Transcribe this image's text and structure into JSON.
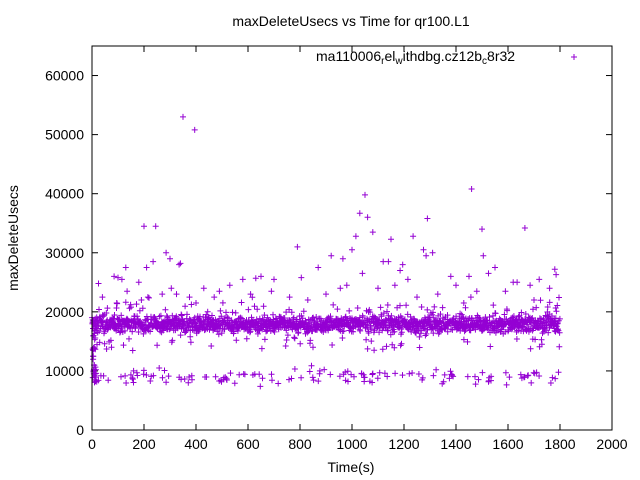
{
  "chart_data": {
    "type": "scatter",
    "title": "maxDeleteUsecs vs Time for qr100.L1",
    "xlabel": "Time(s)",
    "ylabel": "maxDeleteUsecs",
    "xlim": [
      0,
      2000
    ],
    "ylim": [
      0,
      65000
    ],
    "xticks": [
      0,
      200,
      400,
      600,
      800,
      1000,
      1200,
      1400,
      1600,
      1800,
      2000
    ],
    "yticks": [
      0,
      10000,
      20000,
      30000,
      40000,
      50000,
      60000
    ],
    "grid": false,
    "legend_position": "top-right",
    "marker": "+",
    "series": [
      {
        "name": "ma110006_rel_withdbg.cz12b_c8r32",
        "legend_parts": {
          "base": "ma110006",
          "sub1": "r",
          "mid1": "el",
          "sub2": "w",
          "mid2": "ithdbg.cz12b",
          "sub3": "c",
          "end": "8r32"
        },
        "color": "#9400d3",
        "cluster_count": 1800,
        "points": [
          [
            5,
            12500
          ],
          [
            8,
            11000
          ],
          [
            12,
            9500
          ],
          [
            15,
            10200
          ],
          [
            18,
            8200
          ],
          [
            22,
            16500
          ],
          [
            25,
            24800
          ],
          [
            40,
            22500
          ],
          [
            55,
            19800
          ],
          [
            60,
            17000
          ],
          [
            75,
            14000
          ],
          [
            85,
            26000
          ],
          [
            95,
            21500
          ],
          [
            100,
            25800
          ],
          [
            115,
            25500
          ],
          [
            130,
            27500
          ],
          [
            135,
            23500
          ],
          [
            150,
            20800
          ],
          [
            160,
            10000
          ],
          [
            180,
            25000
          ],
          [
            190,
            22000
          ],
          [
            200,
            34500
          ],
          [
            210,
            27500
          ],
          [
            215,
            22500
          ],
          [
            235,
            28500
          ],
          [
            245,
            34500
          ],
          [
            270,
            23000
          ],
          [
            285,
            30000
          ],
          [
            300,
            29000
          ],
          [
            305,
            24000
          ],
          [
            325,
            23000
          ],
          [
            335,
            28000
          ],
          [
            340,
            28200
          ],
          [
            350,
            53000
          ],
          [
            375,
            22500
          ],
          [
            395,
            50800
          ],
          [
            400,
            21500
          ],
          [
            430,
            24000
          ],
          [
            445,
            20000
          ],
          [
            470,
            22500
          ],
          [
            490,
            23500
          ],
          [
            530,
            24500
          ],
          [
            555,
            15200
          ],
          [
            580,
            25500
          ],
          [
            610,
            23000
          ],
          [
            630,
            25700
          ],
          [
            650,
            26000
          ],
          [
            690,
            23500
          ],
          [
            700,
            25500
          ],
          [
            760,
            22500
          ],
          [
            780,
            15500
          ],
          [
            790,
            31000
          ],
          [
            805,
            25800
          ],
          [
            830,
            22000
          ],
          [
            850,
            14000
          ],
          [
            870,
            27500
          ],
          [
            900,
            23000
          ],
          [
            920,
            29500
          ],
          [
            955,
            24000
          ],
          [
            965,
            29000
          ],
          [
            980,
            24500
          ],
          [
            1000,
            30500
          ],
          [
            1015,
            32800
          ],
          [
            1030,
            36700
          ],
          [
            1040,
            26500
          ],
          [
            1050,
            39800
          ],
          [
            1060,
            36000
          ],
          [
            1080,
            33500
          ],
          [
            1085,
            13500
          ],
          [
            1100,
            24000
          ],
          [
            1120,
            28500
          ],
          [
            1140,
            28500
          ],
          [
            1150,
            32300
          ],
          [
            1165,
            24500
          ],
          [
            1185,
            27000
          ],
          [
            1195,
            28000
          ],
          [
            1215,
            25500
          ],
          [
            1235,
            32800
          ],
          [
            1250,
            22500
          ],
          [
            1275,
            30500
          ],
          [
            1285,
            29500
          ],
          [
            1290,
            35800
          ],
          [
            1310,
            30000
          ],
          [
            1330,
            23000
          ],
          [
            1380,
            26000
          ],
          [
            1400,
            24500
          ],
          [
            1430,
            21500
          ],
          [
            1450,
            26000
          ],
          [
            1460,
            40800
          ],
          [
            1480,
            23500
          ],
          [
            1500,
            34000
          ],
          [
            1505,
            29500
          ],
          [
            1525,
            26500
          ],
          [
            1550,
            27500
          ],
          [
            1590,
            23500
          ],
          [
            1620,
            25000
          ],
          [
            1635,
            25000
          ],
          [
            1665,
            34200
          ],
          [
            1685,
            24500
          ],
          [
            1700,
            22000
          ],
          [
            1720,
            25500
          ],
          [
            1760,
            24000
          ],
          [
            1780,
            27200
          ],
          [
            1785,
            26300
          ]
        ]
      }
    ]
  }
}
